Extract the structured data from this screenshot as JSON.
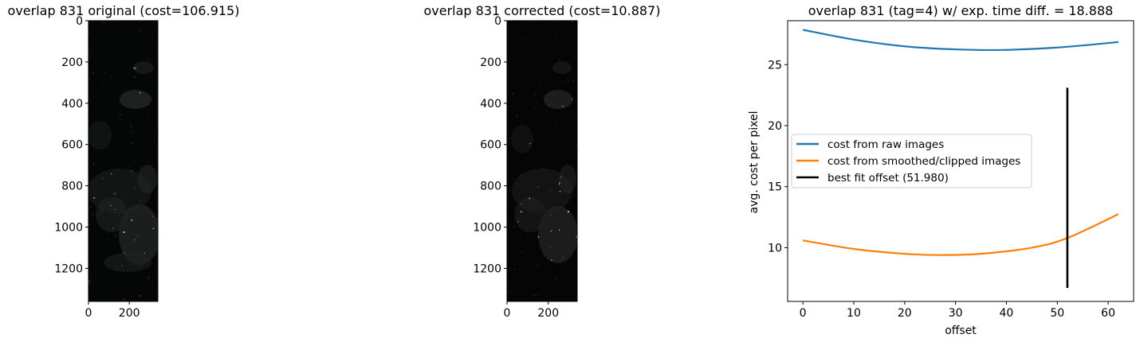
{
  "chart_data": [
    {
      "type": "image",
      "title": "overlap 831 original (cost=106.915)",
      "colormap": "mint-tinted",
      "xticks": [
        "0",
        "200"
      ],
      "yticks": [
        "0",
        "200",
        "400",
        "600",
        "800",
        "1000",
        "1200"
      ],
      "xlim": [
        0,
        340
      ],
      "ylim": [
        1360,
        0
      ]
    },
    {
      "type": "image",
      "title": "overlap 831 corrected (cost=10.887)",
      "colormap": "gray",
      "xticks": [
        "0",
        "200"
      ],
      "yticks": [
        "0",
        "200",
        "400",
        "600",
        "800",
        "1000",
        "1200"
      ],
      "xlim": [
        0,
        340
      ],
      "ylim": [
        1360,
        0
      ]
    },
    {
      "type": "line",
      "title": "overlap 831 (tag=4) w/ exp. time diff. = 18.888",
      "xlabel": "offset",
      "ylabel": "avg. cost per pixel",
      "xlim": [
        -3,
        65
      ],
      "ylim": [
        5.6,
        28.6
      ],
      "xticks": [
        0,
        10,
        20,
        30,
        40,
        50,
        60
      ],
      "yticks": [
        10,
        15,
        20,
        25
      ],
      "legend_position": "center-left",
      "series": [
        {
          "name": "cost from raw images",
          "color": "#1f77b4",
          "x": [
            0,
            10,
            20,
            30,
            39,
            50,
            62
          ],
          "y": [
            27.85,
            27.05,
            26.5,
            26.25,
            26.2,
            26.4,
            26.85
          ]
        },
        {
          "name": "cost from smoothed/clipped images",
          "color": "#ff7f0e",
          "x": [
            0,
            10,
            20,
            27,
            35,
            45,
            52,
            62
          ],
          "y": [
            10.6,
            9.9,
            9.5,
            9.4,
            9.5,
            10.0,
            10.8,
            12.75
          ]
        },
        {
          "name": "best fit offset (51.980)",
          "color": "#000000",
          "x": [
            51.98,
            51.98
          ],
          "y": [
            6.7,
            23.1
          ]
        }
      ]
    }
  ]
}
